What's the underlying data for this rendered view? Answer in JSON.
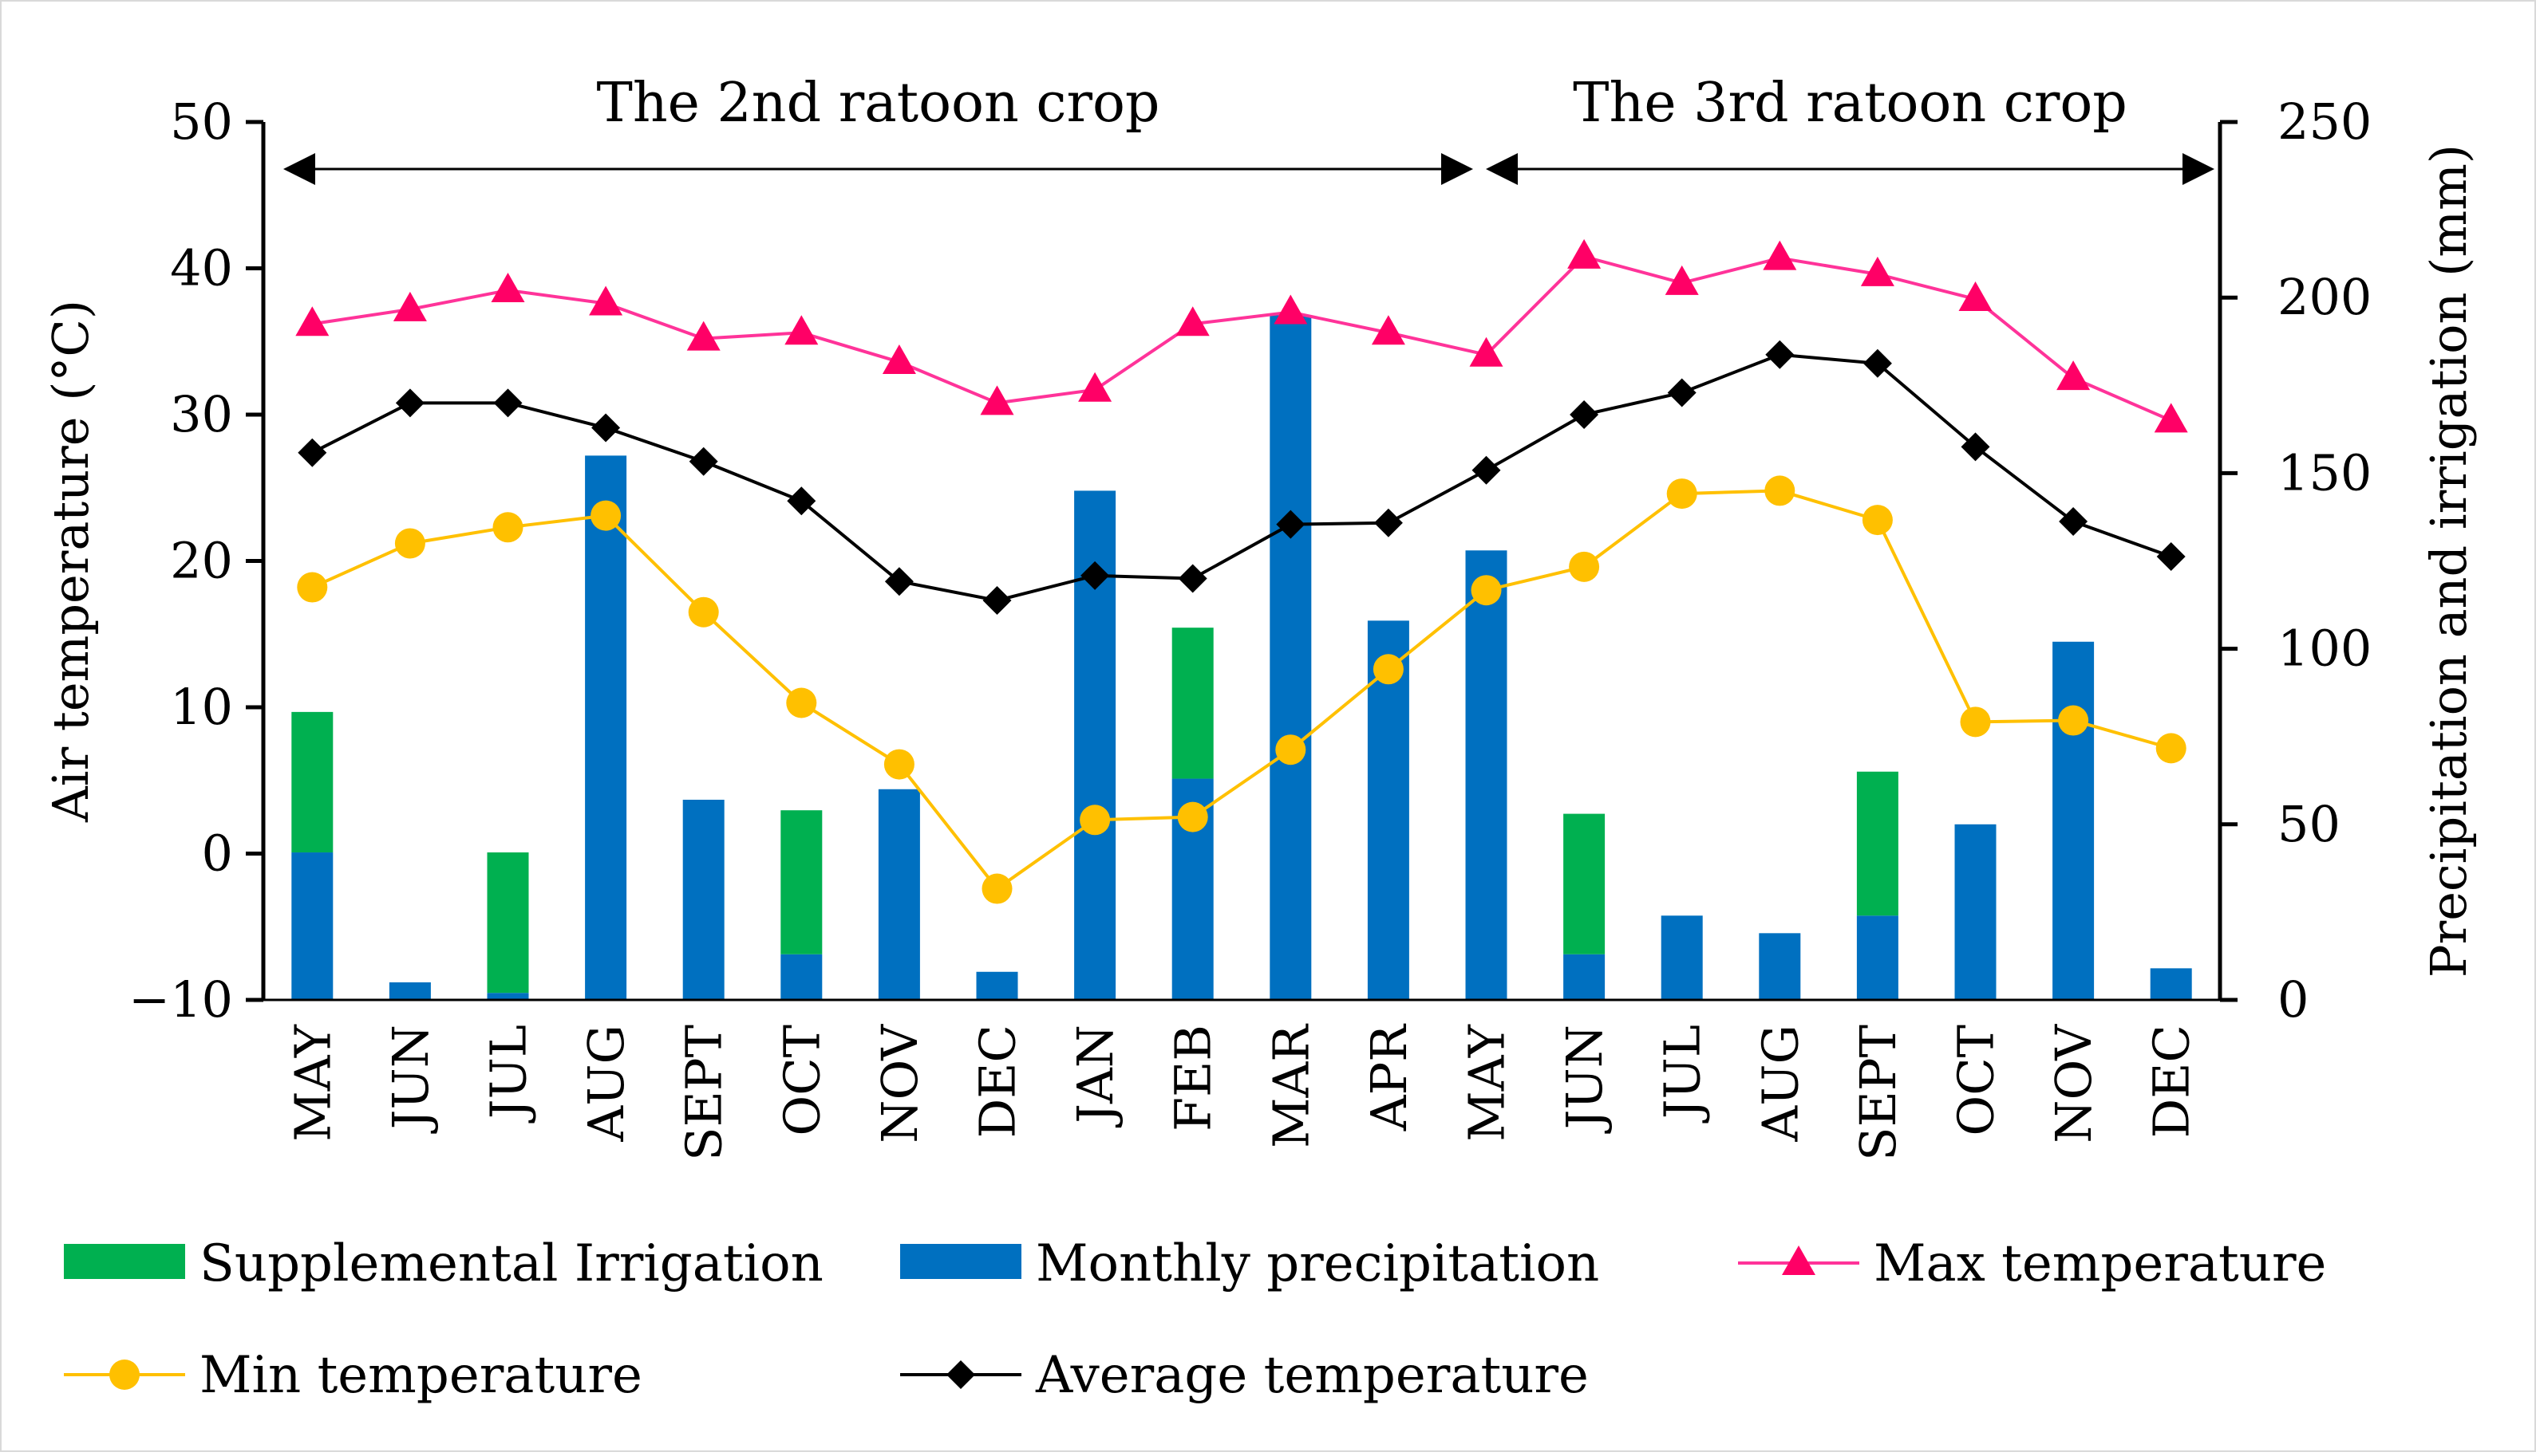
{
  "chart_data": {
    "type": "bar+line",
    "categories": [
      "MAY",
      "JUN",
      "JUL",
      "AUG",
      "SEPT",
      "OCT",
      "NOV",
      "DEC",
      "JAN",
      "FEB",
      "MAR",
      "APR",
      "MAY",
      "JUN",
      "JUL",
      "AUG",
      "SEPT",
      "OCT",
      "NOV",
      "DEC"
    ],
    "periods": [
      {
        "label": "The 2nd ratoon crop",
        "start": 0,
        "end": 12
      },
      {
        "label": "The 3rd ratoon crop",
        "start": 12,
        "end": 19
      }
    ],
    "y_left": {
      "label": "Air temperature (°C)",
      "min": -10,
      "max": 50,
      "ticks": [
        50,
        40,
        30,
        20,
        10,
        0,
        -10
      ],
      "tick_labels": [
        "50",
        "40",
        "30",
        "20",
        "10",
        "0",
        "−10"
      ]
    },
    "y_right": {
      "label": "Precipitation and irrigation (mm)",
      "min": 0,
      "max": 250,
      "ticks": [
        250,
        200,
        150,
        100,
        50,
        0
      ],
      "tick_labels": [
        "250",
        "200",
        "150",
        "100",
        "50",
        "0"
      ]
    },
    "bar_series": [
      {
        "name": "Monthly precipitation",
        "color": "#0070c0",
        "axis": "right",
        "values": [
          42,
          5,
          2,
          155,
          57,
          13,
          60,
          8,
          145,
          63,
          195,
          108,
          128,
          13,
          24,
          19,
          24,
          50,
          102,
          9
        ]
      },
      {
        "name": "Supplemental Irrigation",
        "color": "#00b050",
        "axis": "right",
        "stacked_on": "Monthly precipitation",
        "values": [
          40,
          0,
          40,
          0,
          0,
          41,
          0,
          0,
          0,
          43,
          0,
          0,
          0,
          40,
          0,
          0,
          41,
          0,
          0,
          0
        ]
      }
    ],
    "line_series": [
      {
        "name": "Max temperature",
        "color": "#ff3399",
        "marker": "triangle",
        "marker_color": "#ff0066",
        "axis": "left",
        "values": [
          36.2,
          37.2,
          38.5,
          37.6,
          35.2,
          35.6,
          33.6,
          30.8,
          31.7,
          36.2,
          37.0,
          35.6,
          34.1,
          40.8,
          39.0,
          40.7,
          39.6,
          37.9,
          32.5,
          29.6
        ]
      },
      {
        "name": "Min temperature",
        "color": "#ffc000",
        "marker": "circle",
        "axis": "left",
        "values": [
          18.2,
          21.2,
          22.3,
          23.1,
          16.5,
          10.3,
          6.1,
          -2.4,
          2.3,
          2.5,
          7.1,
          12.6,
          18.0,
          19.6,
          24.6,
          24.8,
          22.8,
          9.0,
          9.1,
          7.2
        ]
      },
      {
        "name": "Average temperature",
        "color": "#000000",
        "marker": "diamond",
        "axis": "left",
        "values": [
          27.4,
          30.8,
          30.8,
          29.1,
          26.8,
          24.1,
          18.6,
          17.3,
          19.0,
          18.8,
          22.5,
          22.6,
          26.2,
          30.0,
          31.5,
          34.1,
          33.5,
          27.8,
          22.7,
          20.3
        ]
      }
    ],
    "legend": {
      "placement": "bottom",
      "items": [
        {
          "name": "Supplemental Irrigation",
          "kind": "bar",
          "color": "#00b050"
        },
        {
          "name": "Monthly precipitation",
          "kind": "bar",
          "color": "#0070c0"
        },
        {
          "name": "Max temperature",
          "kind": "line",
          "color": "#ff3399",
          "marker": "triangle"
        },
        {
          "name": "Min temperature",
          "kind": "line",
          "color": "#ffc000",
          "marker": "circle"
        },
        {
          "name": "Average temperature",
          "kind": "line",
          "color": "#000000",
          "marker": "diamond"
        }
      ]
    },
    "grid": false
  }
}
